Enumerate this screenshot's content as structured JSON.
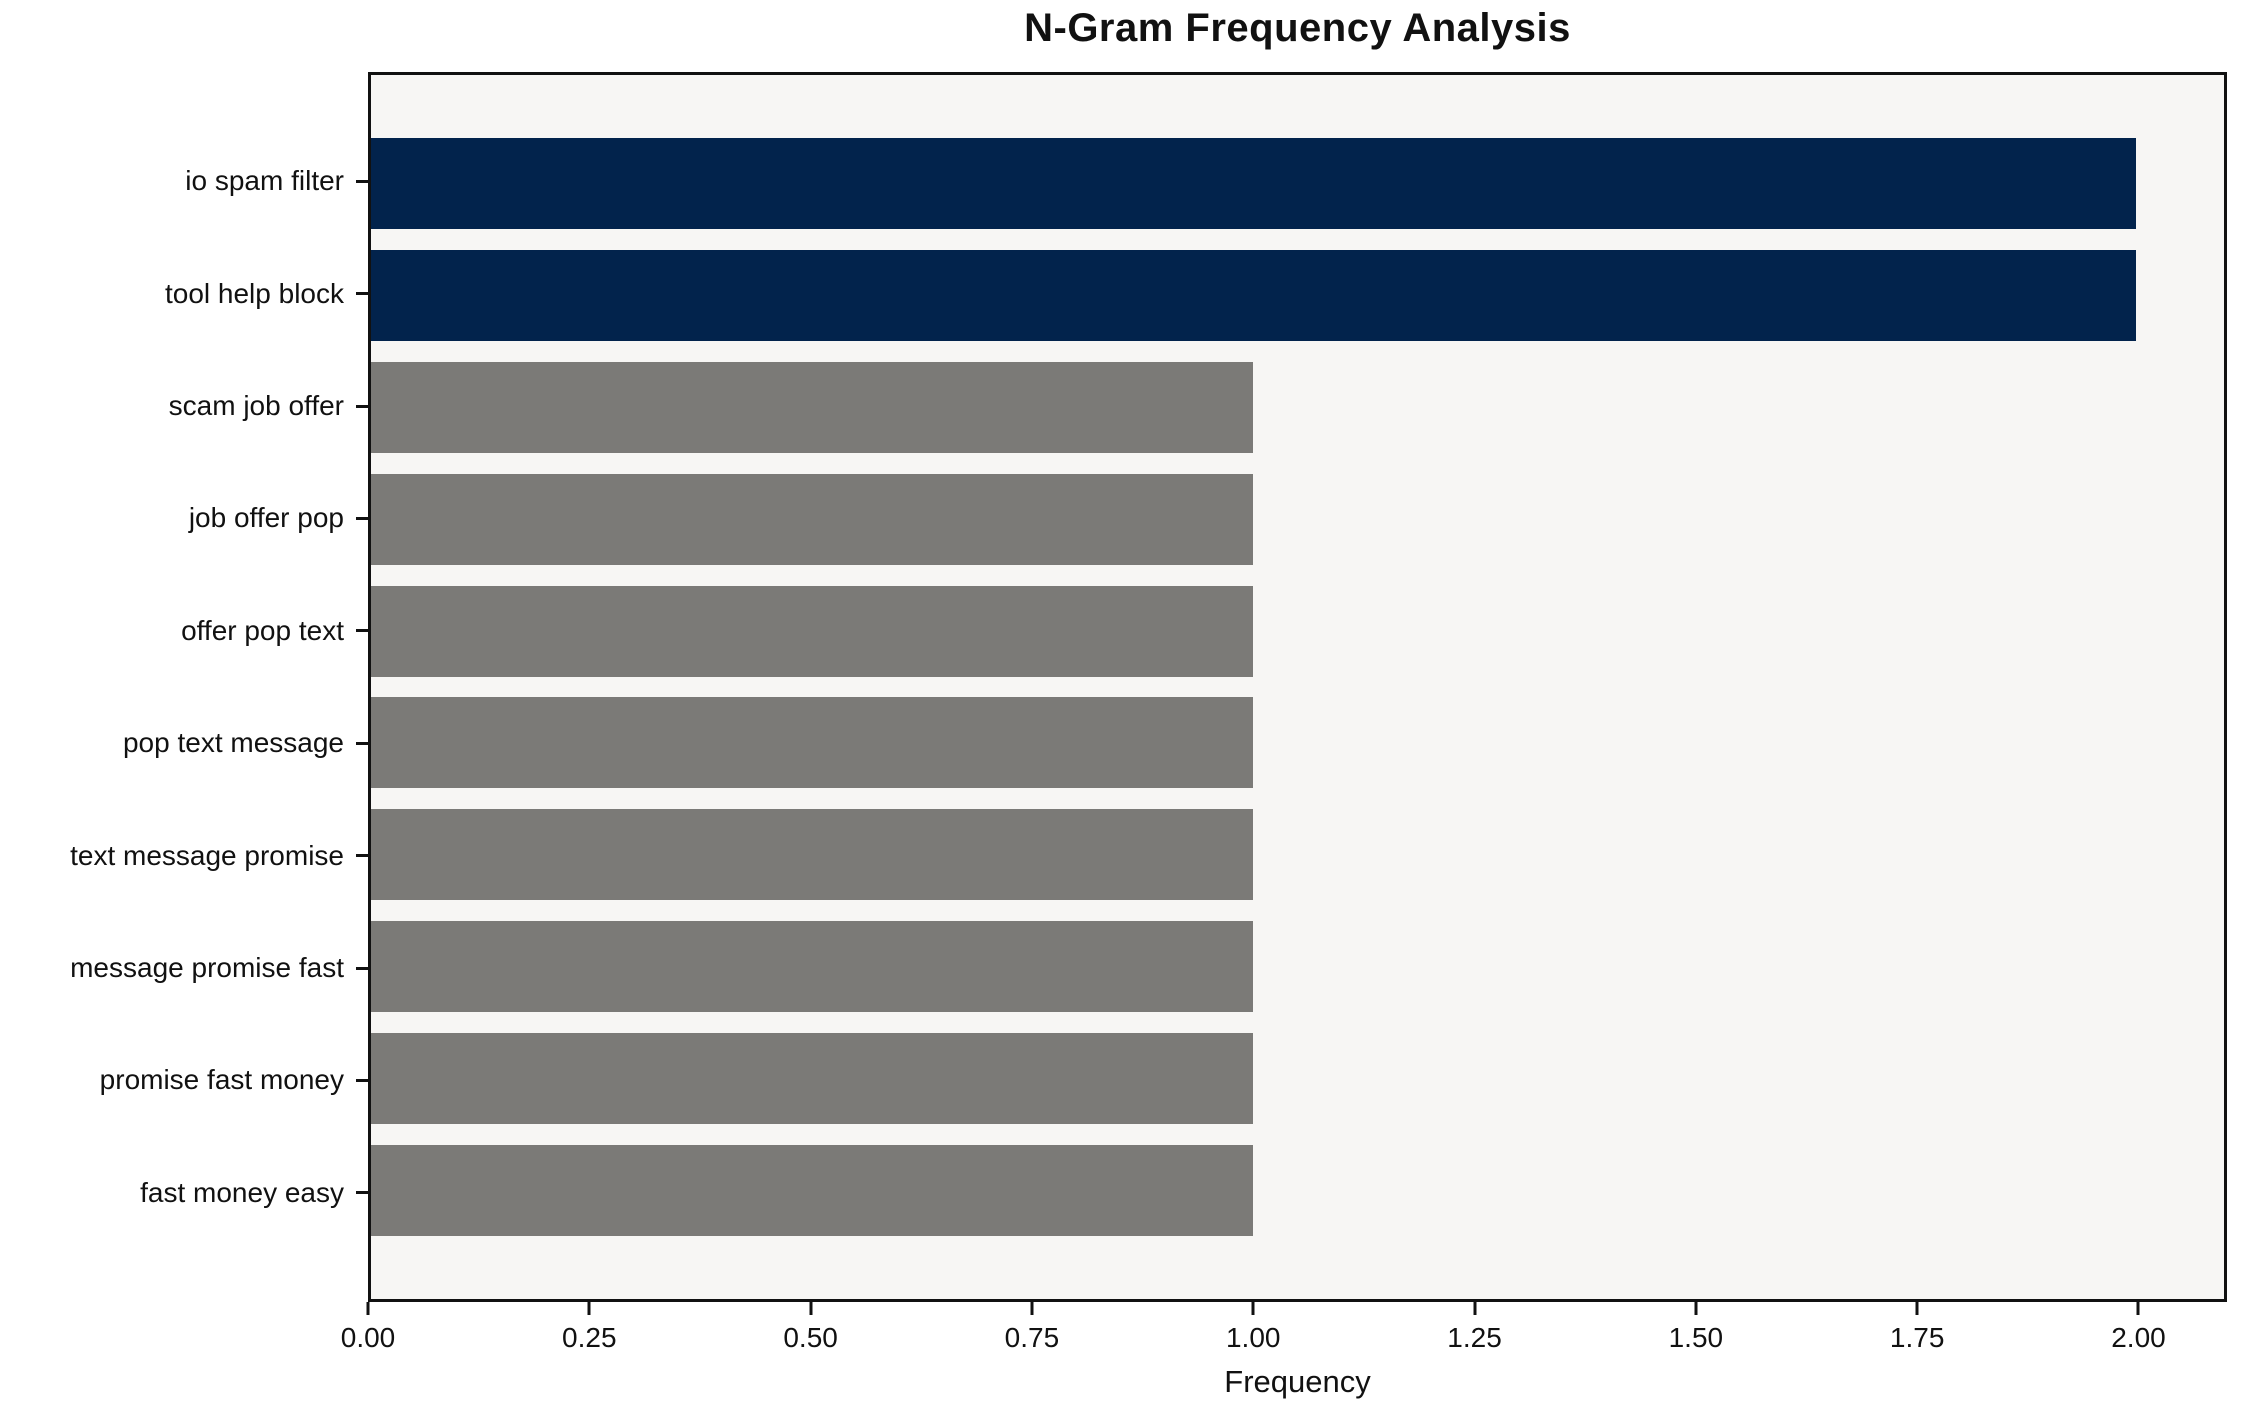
{
  "figure": {
    "background": "#ffffff"
  },
  "chart_data": {
    "type": "bar",
    "orientation": "horizontal",
    "title": "N-Gram Frequency Analysis",
    "xlabel": "Frequency",
    "ylabel": "",
    "categories": [
      "io spam filter",
      "tool help block",
      "scam job offer",
      "job offer pop",
      "offer pop text",
      "pop text message",
      "text message promise",
      "message promise fast",
      "promise fast money",
      "fast money easy"
    ],
    "values": [
      2,
      2,
      1,
      1,
      1,
      1,
      1,
      1,
      1,
      1
    ],
    "bar_colors": [
      "#02234c",
      "#02234c",
      "#7b7a77",
      "#7b7a77",
      "#7b7a77",
      "#7b7a77",
      "#7b7a77",
      "#7b7a77",
      "#7b7a77",
      "#7b7a77"
    ],
    "xlim": [
      0,
      2.1
    ],
    "xticks": [
      0,
      0.25,
      0.5,
      0.75,
      1.0,
      1.25,
      1.5,
      1.75,
      2.0
    ],
    "xtick_labels": [
      "0.00",
      "0.25",
      "0.50",
      "0.75",
      "1.00",
      "1.25",
      "1.50",
      "1.75",
      "2.00"
    ],
    "grid": false,
    "legend": null,
    "plot_background": "#f7f6f4",
    "spine_color": "#111111",
    "text_color": "#111111"
  }
}
